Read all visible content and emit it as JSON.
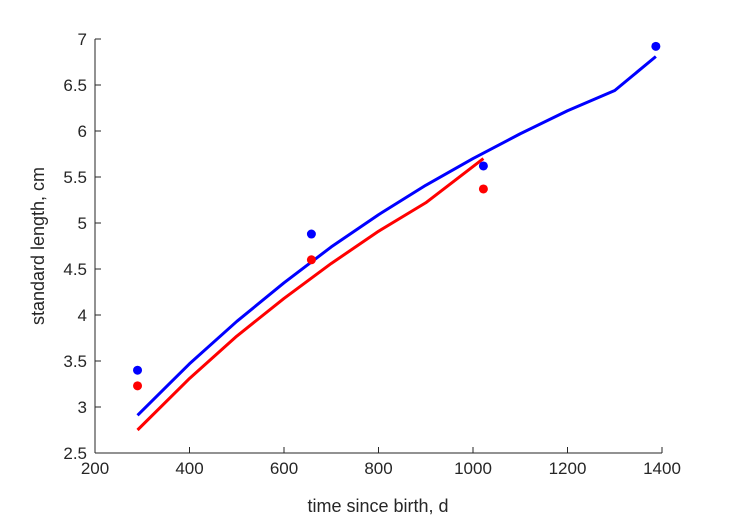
{
  "chart_data": {
    "type": "scatter",
    "title": "",
    "xlabel": "time since birth, d",
    "ylabel": "standard length, cm",
    "xlim": [
      200,
      1400
    ],
    "ylim": [
      2.5,
      7
    ],
    "xticks": [
      200,
      400,
      600,
      800,
      1000,
      1200,
      1400
    ],
    "yticks": [
      2.5,
      3,
      3.5,
      4,
      4.5,
      5,
      5.5,
      6,
      6.5,
      7
    ],
    "grid": false,
    "series": [
      {
        "name": "blue data",
        "kind": "points",
        "color": "#0000ff",
        "x": [
          290,
          658,
          1022,
          1387
        ],
        "y": [
          3.4,
          4.88,
          5.62,
          6.92
        ]
      },
      {
        "name": "red data",
        "kind": "points",
        "color": "#ff0000",
        "x": [
          290,
          658,
          1022
        ],
        "y": [
          3.23,
          4.6,
          5.37
        ]
      },
      {
        "name": "blue fit",
        "kind": "line",
        "color": "#0000ff",
        "x": [
          290,
          400,
          500,
          600,
          700,
          800,
          900,
          1000,
          1100,
          1200,
          1300,
          1387
        ],
        "y": [
          2.91,
          3.47,
          3.93,
          4.35,
          4.74,
          5.09,
          5.41,
          5.7,
          5.97,
          6.22,
          6.44,
          6.81
        ]
      },
      {
        "name": "red fit",
        "kind": "line",
        "color": "#ff0000",
        "x": [
          290,
          400,
          500,
          600,
          700,
          800,
          900,
          1022
        ],
        "y": [
          2.75,
          3.31,
          3.77,
          4.18,
          4.56,
          4.91,
          5.22,
          5.7
        ]
      }
    ]
  }
}
